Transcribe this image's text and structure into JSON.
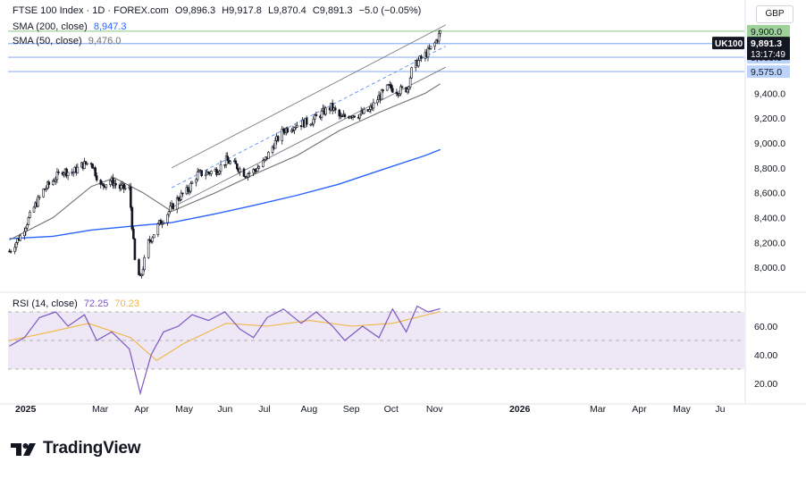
{
  "header": {
    "symbol": "FTSE 100 Index · 1D · FOREX.com",
    "open": "O9,896.3",
    "high": "H9,917.8",
    "low": "L9,870.4",
    "close": "C9,891.3",
    "change": "−5.0 (−0.05%)",
    "sma200_label": "SMA (200, close)",
    "sma200_value": "8,947.3",
    "sma50_label": "SMA (50, close)",
    "sma50_value": "9,476.0",
    "rsi_label": "RSI (14, close)",
    "rsi_value": "72.25",
    "rsi_ma_value": "70.23",
    "currency": "GBP"
  },
  "price_axis": {
    "ticks": [
      "8,000.0",
      "8,200.0",
      "8,400.0",
      "8,600.0",
      "8,800.0",
      "9,000.0",
      "9,200.0",
      "9,400.0"
    ],
    "tags": {
      "level_9900": "9,900.0",
      "symbol_tag": "UK100",
      "last_price": "9,891.3",
      "countdown": "13:17:49",
      "level_9800": "9,800.0",
      "level_9689": "9,689.9",
      "level_9575": "9,575.0"
    }
  },
  "rsi_axis": {
    "ticks": [
      "20.00",
      "40.00",
      "60.00"
    ]
  },
  "time_axis": [
    "2025",
    "Mar",
    "Apr",
    "May",
    "Jun",
    "Jul",
    "Aug",
    "Sep",
    "Oct",
    "Nov",
    "2026",
    "Mar",
    "Apr",
    "May",
    "Ju"
  ],
  "colors": {
    "up": "#26a69a",
    "candle": "#131722",
    "sma200": "#2962ff",
    "sma50": "#707070",
    "rsi": "#7e57c2",
    "rsi_ma": "#f0b640",
    "rsi_band": "#ede7f6",
    "level_green": "#9ed29a",
    "level_blue": "#90b5f5",
    "tag_blue": "#bbd3fb"
  },
  "brand": {
    "name": "TradingView",
    "logo_icon": "tradingview-logo-icon"
  },
  "chart_data": {
    "type": "candlestick",
    "title": "FTSE 100 Index · 1D · FOREX.com",
    "ylim": [
      7850,
      10050
    ],
    "y_unit": "GBP",
    "x_range": [
      "2025-01-01",
      "2026-06-25"
    ],
    "price_path": [
      [
        "2025-01-02",
        8130
      ],
      [
        "2025-01-10",
        8250
      ],
      [
        "2025-01-20",
        8480
      ],
      [
        "2025-01-27",
        8620
      ],
      [
        "2025-02-03",
        8700
      ],
      [
        "2025-02-10",
        8780
      ],
      [
        "2025-02-17",
        8760
      ],
      [
        "2025-02-24",
        8820
      ],
      [
        "2025-03-03",
        8850
      ],
      [
        "2025-03-10",
        8650
      ],
      [
        "2025-03-17",
        8700
      ],
      [
        "2025-03-24",
        8640
      ],
      [
        "2025-03-31",
        8630
      ],
      [
        "2025-04-04",
        8050
      ],
      [
        "2025-04-08",
        7900
      ],
      [
        "2025-04-14",
        8200
      ],
      [
        "2025-04-22",
        8350
      ],
      [
        "2025-04-29",
        8450
      ],
      [
        "2025-05-06",
        8560
      ],
      [
        "2025-05-13",
        8620
      ],
      [
        "2025-05-20",
        8750
      ],
      [
        "2025-05-27",
        8760
      ],
      [
        "2025-06-03",
        8780
      ],
      [
        "2025-06-10",
        8860
      ],
      [
        "2025-06-17",
        8820
      ],
      [
        "2025-06-24",
        8750
      ],
      [
        "2025-07-01",
        8780
      ],
      [
        "2025-07-08",
        8850
      ],
      [
        "2025-07-15",
        8990
      ],
      [
        "2025-07-22",
        9100
      ],
      [
        "2025-07-29",
        9140
      ],
      [
        "2025-08-05",
        9160
      ],
      [
        "2025-08-12",
        9180
      ],
      [
        "2025-08-19",
        9240
      ],
      [
        "2025-08-26",
        9290
      ],
      [
        "2025-09-02",
        9200
      ],
      [
        "2025-09-09",
        9230
      ],
      [
        "2025-09-16",
        9230
      ],
      [
        "2025-09-23",
        9260
      ],
      [
        "2025-09-30",
        9370
      ],
      [
        "2025-10-07",
        9450
      ],
      [
        "2025-10-14",
        9420
      ],
      [
        "2025-10-21",
        9440
      ],
      [
        "2025-10-24",
        9580
      ],
      [
        "2025-10-28",
        9650
      ],
      [
        "2025-11-04",
        9720
      ],
      [
        "2025-11-10",
        9800
      ],
      [
        "2025-11-14",
        9891.3
      ]
    ],
    "sma200": [
      [
        "2025-01-02",
        8230
      ],
      [
        "2025-02-03",
        8250
      ],
      [
        "2025-03-03",
        8300
      ],
      [
        "2025-04-01",
        8330
      ],
      [
        "2025-05-01",
        8360
      ],
      [
        "2025-06-02",
        8430
      ],
      [
        "2025-07-01",
        8500
      ],
      [
        "2025-08-01",
        8580
      ],
      [
        "2025-09-01",
        8670
      ],
      [
        "2025-10-01",
        8780
      ],
      [
        "2025-11-03",
        8900
      ],
      [
        "2025-11-14",
        8947.3
      ]
    ],
    "sma50": [
      [
        "2025-01-02",
        8220
      ],
      [
        "2025-02-03",
        8400
      ],
      [
        "2025-03-03",
        8650
      ],
      [
        "2025-03-20",
        8720
      ],
      [
        "2025-04-10",
        8600
      ],
      [
        "2025-05-01",
        8450
      ],
      [
        "2025-06-02",
        8600
      ],
      [
        "2025-07-01",
        8750
      ],
      [
        "2025-08-01",
        8900
      ],
      [
        "2025-09-01",
        9100
      ],
      [
        "2025-10-01",
        9250
      ],
      [
        "2025-11-03",
        9400
      ],
      [
        "2025-11-14",
        9476.0
      ]
    ],
    "channel": {
      "upper": [
        [
          "2025-05-01",
          8800
        ],
        [
          "2025-11-18",
          9950
        ]
      ],
      "lower": [
        [
          "2025-05-01",
          8480
        ],
        [
          "2025-11-18",
          9610
        ]
      ],
      "mid": [
        [
          "2025-05-01",
          8640
        ],
        [
          "2025-11-18",
          9780
        ]
      ]
    },
    "levels": [
      9900,
      9800,
      9689.9,
      9575.0
    ],
    "rsi": {
      "ylim": [
        10,
        80
      ],
      "bands": [
        30,
        70
      ],
      "mid": 50,
      "values": [
        [
          "2025-01-02",
          46
        ],
        [
          "2025-01-13",
          52
        ],
        [
          "2025-01-24",
          66
        ],
        [
          "2025-02-05",
          70
        ],
        [
          "2025-02-14",
          60
        ],
        [
          "2025-02-26",
          68
        ],
        [
          "2025-03-07",
          50
        ],
        [
          "2025-03-18",
          56
        ],
        [
          "2025-03-31",
          44
        ],
        [
          "2025-04-08",
          13
        ],
        [
          "2025-04-16",
          40
        ],
        [
          "2025-04-25",
          56
        ],
        [
          "2025-05-06",
          60
        ],
        [
          "2025-05-16",
          68
        ],
        [
          "2025-05-28",
          64
        ],
        [
          "2025-06-09",
          70
        ],
        [
          "2025-06-20",
          58
        ],
        [
          "2025-06-30",
          52
        ],
        [
          "2025-07-10",
          66
        ],
        [
          "2025-07-22",
          72
        ],
        [
          "2025-08-04",
          62
        ],
        [
          "2025-08-15",
          70
        ],
        [
          "2025-08-27",
          60
        ],
        [
          "2025-09-05",
          50
        ],
        [
          "2025-09-18",
          60
        ],
        [
          "2025-09-30",
          52
        ],
        [
          "2025-10-10",
          72
        ],
        [
          "2025-10-20",
          56
        ],
        [
          "2025-10-28",
          74
        ],
        [
          "2025-11-05",
          70
        ],
        [
          "2025-11-14",
          72.25
        ]
      ],
      "ma": [
        [
          "2025-01-02",
          50
        ],
        [
          "2025-02-01",
          56
        ],
        [
          "2025-03-01",
          62
        ],
        [
          "2025-04-01",
          52
        ],
        [
          "2025-04-20",
          36
        ],
        [
          "2025-05-10",
          48
        ],
        [
          "2025-06-10",
          62
        ],
        [
          "2025-07-10",
          60
        ],
        [
          "2025-08-10",
          64
        ],
        [
          "2025-09-10",
          60
        ],
        [
          "2025-10-10",
          62
        ],
        [
          "2025-11-14",
          70.23
        ]
      ]
    }
  }
}
